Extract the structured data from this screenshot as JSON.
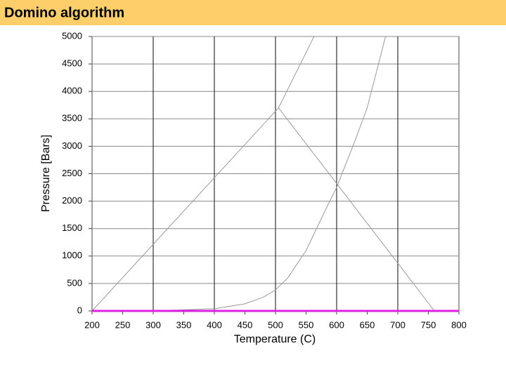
{
  "chart_data": {
    "type": "line",
    "title": "Domino algorithm",
    "xlabel": "Temperature (C)",
    "ylabel": "Pressure [Bars]",
    "xlim": [
      200,
      800
    ],
    "ylim": [
      0,
      5000
    ],
    "xticks": [
      200,
      250,
      300,
      350,
      400,
      450,
      500,
      550,
      600,
      650,
      700,
      750,
      800
    ],
    "yticks": [
      0,
      500,
      1000,
      1500,
      2000,
      2500,
      3000,
      3500,
      4000,
      4500,
      5000
    ],
    "xgrid": [
      300,
      400,
      500,
      600,
      700
    ],
    "grid": true,
    "series": [
      {
        "color": "#9a9a9a",
        "x": [
          200,
          505,
          563
        ],
        "values": [
          0,
          3700,
          5000
        ]
      },
      {
        "color": "#9a9a9a",
        "x": [
          200,
          300,
          350,
          400,
          450,
          480,
          500,
          520,
          550,
          580,
          600,
          630,
          650,
          680
        ],
        "values": [
          0,
          5,
          20,
          40,
          130,
          250,
          380,
          600,
          1100,
          1800,
          2250,
          3100,
          3700,
          5000
        ]
      },
      {
        "color": "#9a9a9a",
        "x": [
          505,
          760,
          800
        ],
        "values": [
          3700,
          0,
          0
        ]
      },
      {
        "color": "#e020e0",
        "x": [
          200,
          800
        ],
        "values": [
          0,
          0
        ]
      }
    ]
  }
}
